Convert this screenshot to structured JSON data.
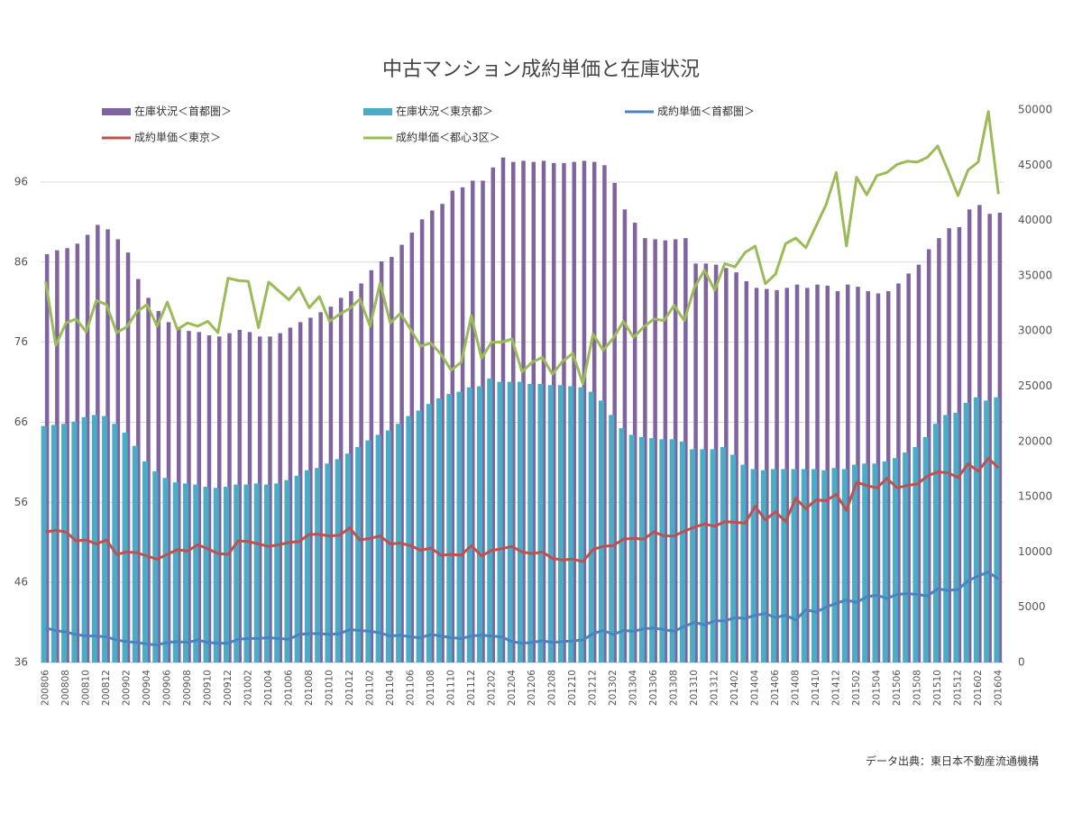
{
  "chart_data": {
    "type": "bar-line",
    "title": "中古マンション成約単価と在庫状況",
    "source": "データ出典：東日本不動産流通機構",
    "categories": [
      "200806",
      null,
      "200808",
      null,
      "200810",
      null,
      "200812",
      null,
      "200902",
      null,
      "200904",
      null,
      "200906",
      null,
      "200908",
      null,
      "200910",
      null,
      "200912",
      null,
      "201002",
      null,
      "201004",
      null,
      "201006",
      null,
      "201008",
      null,
      "201010",
      null,
      "201012",
      null,
      "201102",
      null,
      "201104",
      null,
      "201106",
      null,
      "201108",
      null,
      "201110",
      null,
      "201112",
      null,
      "201202",
      null,
      "201204",
      null,
      "201206",
      null,
      "201208",
      null,
      "201210",
      null,
      "201212",
      null,
      "201302",
      null,
      "201304",
      null,
      "201306",
      null,
      "201308",
      null,
      "201310",
      null,
      "201312",
      null,
      "201402",
      null,
      "201404",
      null,
      "201406",
      null,
      "201408",
      null,
      "201410",
      null,
      "201412",
      null,
      "201502",
      null,
      "201504",
      null,
      "201506",
      null,
      "201508",
      null,
      "201510",
      null,
      "201512",
      null,
      "201602",
      null,
      "201604"
    ],
    "ylim": [
      36,
      105
    ],
    "yticks": [
      36,
      46,
      56,
      66,
      76,
      86,
      96
    ],
    "y2lim": [
      0,
      50000
    ],
    "y2ticks": [
      0,
      5000,
      10000,
      15000,
      20000,
      25000,
      30000,
      35000,
      40000,
      45000,
      50000
    ],
    "grid": true,
    "series": [
      {
        "name": "在庫状況＜首都圏＞",
        "type": "bar",
        "axis": "y2",
        "color": "#7f64a0",
        "values": [
          36950,
          37300,
          37500,
          37900,
          38700,
          39600,
          39200,
          38300,
          37100,
          34700,
          33000,
          31800,
          30800,
          30200,
          30000,
          29900,
          29600,
          29500,
          29800,
          30100,
          29900,
          29500,
          29500,
          29800,
          30300,
          30800,
          31200,
          31700,
          32200,
          33000,
          33600,
          34300,
          35500,
          36300,
          36700,
          37800,
          38900,
          40100,
          40900,
          41500,
          42700,
          43000,
          43600,
          43600,
          44800,
          45700,
          45300,
          45400,
          45300,
          45400,
          45200,
          45200,
          45300,
          45400,
          45300,
          45000,
          43400,
          41000,
          39800,
          38400,
          38300,
          38200,
          38300,
          38400,
          36100,
          36100,
          36000,
          35700,
          35300,
          34500,
          33900,
          33800,
          33700,
          33900,
          34200,
          33900,
          34200,
          34100,
          33600,
          34200,
          34000,
          33600,
          33400,
          33600,
          34300,
          35200,
          36000,
          37400,
          38400,
          39300,
          39400,
          41000,
          41400,
          40600,
          40700
        ]
      },
      {
        "name": "在庫状況＜東京都＞",
        "type": "bar",
        "axis": "y2",
        "color": "#4bacc6",
        "values": [
          21400,
          21500,
          21600,
          21800,
          22200,
          22400,
          22300,
          21600,
          20800,
          19600,
          18200,
          17300,
          16700,
          16300,
          16200,
          16100,
          15900,
          15800,
          15900,
          16100,
          16100,
          16200,
          16100,
          16200,
          16500,
          16900,
          17400,
          17600,
          18000,
          18400,
          18900,
          19500,
          20100,
          20600,
          21000,
          21600,
          22300,
          22800,
          23400,
          23900,
          24300,
          24500,
          24900,
          25000,
          25700,
          25400,
          25400,
          25400,
          25200,
          25200,
          25100,
          25100,
          25000,
          24900,
          24500,
          23700,
          22400,
          21200,
          20600,
          20400,
          20300,
          20200,
          20200,
          20000,
          19300,
          19300,
          19300,
          19500,
          18800,
          17900,
          17500,
          17400,
          17500,
          17500,
          17500,
          17500,
          17500,
          17400,
          17600,
          17500,
          17900,
          18000,
          18000,
          18200,
          18500,
          19000,
          19500,
          20400,
          21600,
          22400,
          22600,
          23500,
          24000,
          23700,
          24000
        ]
      },
      {
        "name": "成約単価＜首都圏＞",
        "type": "line",
        "color": "#4f81bd",
        "values": [
          40.3,
          40.0,
          39.8,
          39.5,
          39.3,
          39.3,
          39.2,
          38.8,
          38.6,
          38.5,
          38.3,
          38.2,
          38.5,
          38.6,
          38.5,
          38.8,
          38.5,
          38.4,
          38.4,
          38.9,
          39.0,
          39.0,
          39.1,
          39.0,
          38.9,
          39.5,
          39.6,
          39.6,
          39.5,
          39.6,
          40.1,
          40.0,
          39.9,
          39.7,
          39.3,
          39.4,
          39.2,
          39.1,
          39.5,
          39.3,
          39.1,
          39.0,
          39.3,
          39.4,
          39.3,
          39.2,
          38.6,
          38.4,
          38.5,
          38.7,
          38.5,
          38.6,
          38.7,
          38.8,
          39.6,
          40.0,
          39.5,
          40.0,
          39.9,
          40.2,
          40.3,
          40.1,
          39.9,
          40.5,
          41.0,
          40.7,
          41.2,
          41.2,
          41.6,
          41.5,
          41.9,
          42.1,
          41.6,
          41.9,
          41.3,
          42.6,
          42.3,
          42.9,
          43.4,
          43.8,
          43.5,
          44.2,
          44.4,
          44.0,
          44.5,
          44.6,
          44.5,
          44.3,
          45.2,
          45.0,
          45.1,
          46.2,
          46.8,
          47.3,
          46.4
        ]
      },
      {
        "name": "成約単価＜東京＞",
        "type": "line",
        "color": "#c0504d",
        "values": [
          52.3,
          52.5,
          52.3,
          51.2,
          51.3,
          50.8,
          51.3,
          49.5,
          49.8,
          49.7,
          49.3,
          48.9,
          49.5,
          50.1,
          49.9,
          50.7,
          50.2,
          49.6,
          49.5,
          51.2,
          51.1,
          50.8,
          50.5,
          50.7,
          51.0,
          51.1,
          52.0,
          52.0,
          51.8,
          51.9,
          52.8,
          51.3,
          51.5,
          51.8,
          50.8,
          50.9,
          50.6,
          50.0,
          50.3,
          49.4,
          49.5,
          49.4,
          50.6,
          49.3,
          50.0,
          50.2,
          50.5,
          49.8,
          49.6,
          49.8,
          49.0,
          48.8,
          48.9,
          48.6,
          50.1,
          50.5,
          50.6,
          51.4,
          51.5,
          51.4,
          52.3,
          51.8,
          51.8,
          52.4,
          52.9,
          53.3,
          53.0,
          53.6,
          53.5,
          53.4,
          55.5,
          53.8,
          54.8,
          53.6,
          56.5,
          55.2,
          56.3,
          56.2,
          57.0,
          55.0,
          58.5,
          58.1,
          57.8,
          59.0,
          57.8,
          58.1,
          58.3,
          59.3,
          59.8,
          59.7,
          59.1,
          60.8,
          59.9,
          61.5,
          60.3
        ]
      },
      {
        "name": "成約単価＜都心3区＞",
        "type": "line",
        "color": "#9bbb59",
        "values": [
          83.6,
          75.6,
          78.4,
          78.9,
          77.3,
          81.2,
          80.7,
          77.2,
          77.9,
          79.8,
          80.7,
          78.0,
          81.0,
          77.6,
          78.4,
          78.0,
          78.6,
          77.2,
          84.0,
          83.7,
          83.6,
          77.8,
          83.5,
          82.4,
          81.3,
          82.8,
          80.3,
          81.7,
          78.6,
          79.5,
          80.2,
          81.4,
          78.0,
          83.4,
          78.4,
          79.6,
          77.6,
          75.5,
          75.9,
          74.5,
          72.5,
          73.5,
          79.3,
          74.0,
          76.0,
          76.0,
          76.4,
          72.3,
          73.5,
          74.1,
          72.0,
          73.6,
          74.6,
          70.8,
          77.0,
          75.0,
          76.5,
          78.6,
          76.6,
          77.9,
          78.9,
          78.7,
          80.6,
          78.7,
          82.8,
          85.0,
          82.5,
          85.8,
          85.4,
          87.2,
          88.0,
          83.3,
          84.5,
          88.3,
          89.0,
          87.8,
          90.5,
          93.2,
          97.2,
          88.0,
          96.6,
          94.4,
          96.8,
          97.2,
          98.2,
          98.6,
          98.5,
          99.1,
          100.5,
          97.5,
          94.3,
          97.5,
          98.5,
          104.8,
          94.5
        ]
      }
    ]
  }
}
